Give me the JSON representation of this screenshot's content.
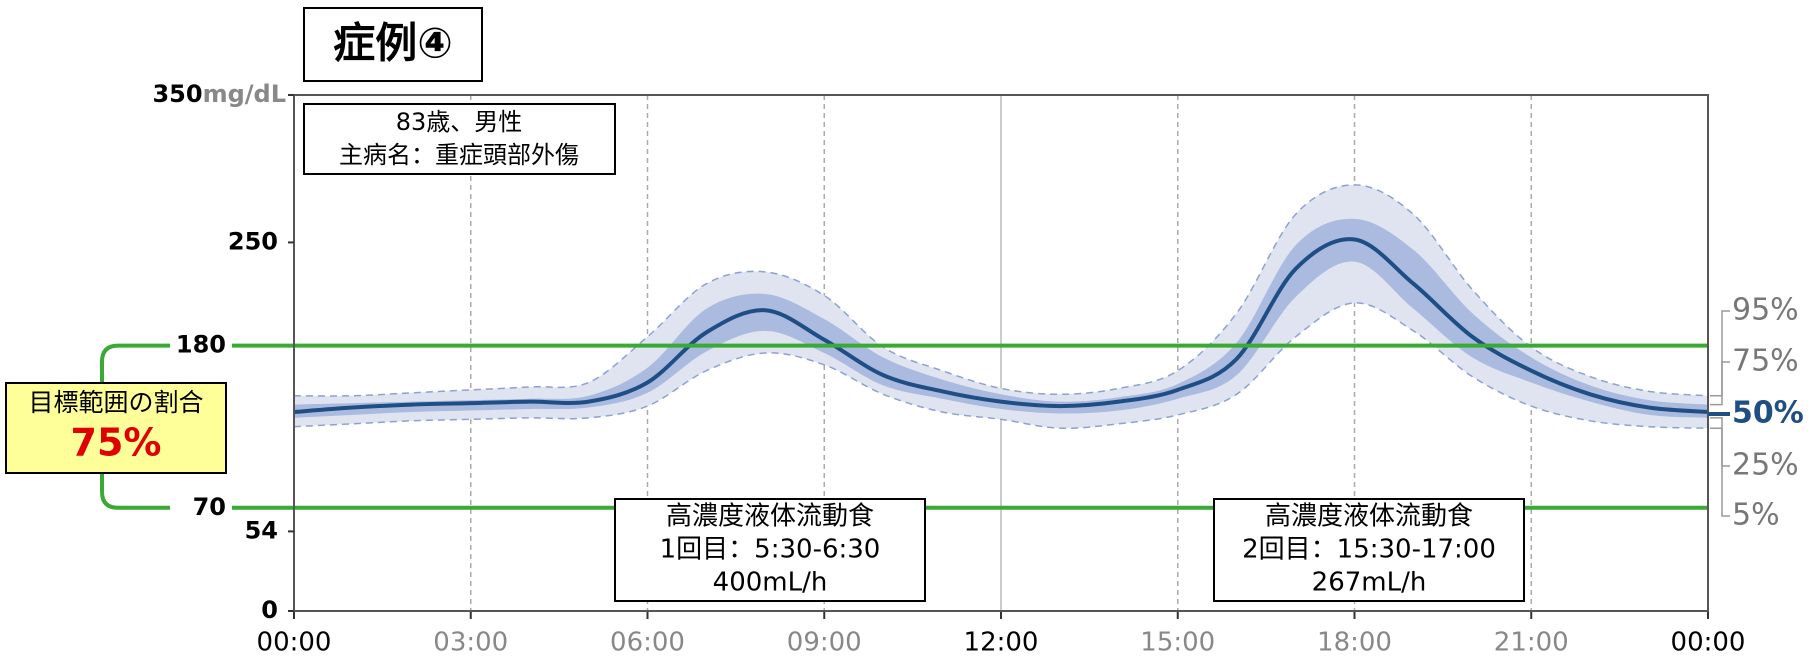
{
  "chart_data": {
    "type": "agp",
    "title": "症例④",
    "patient_info": [
      "83歳、男性",
      "主病名：重症頭部外傷"
    ],
    "x": [
      0,
      1,
      2,
      3,
      4,
      5,
      6,
      7,
      8,
      9,
      10,
      11,
      12,
      13,
      14,
      15,
      16,
      17,
      18,
      19,
      20,
      21,
      22,
      23,
      24
    ],
    "xlim": [
      0,
      24
    ],
    "xticks": [
      {
        "value": 0,
        "label": "00:00"
      },
      {
        "value": 3,
        "label": "03:00"
      },
      {
        "value": 6,
        "label": "06:00"
      },
      {
        "value": 9,
        "label": "09:00"
      },
      {
        "value": 12,
        "label": "12:00"
      },
      {
        "value": 15,
        "label": "15:00"
      },
      {
        "value": 18,
        "label": "18:00"
      },
      {
        "value": 21,
        "label": "21:00"
      },
      {
        "value": 24,
        "label": "00:00"
      }
    ],
    "ylim": [
      0,
      350
    ],
    "yticks": [
      0,
      54,
      250,
      350
    ],
    "y_unit": "mg/dL",
    "target_range": {
      "low": 70,
      "high": 180,
      "color": "#3aaa35"
    },
    "time_in_range": {
      "title": "目標範囲の割合",
      "value": 75,
      "label": "75%"
    },
    "outer_band_color": "#dfe4f0",
    "inner_band_color": "#aabbdf",
    "series": [
      {
        "name": "95%",
        "color": "#8da2cf",
        "values": [
          146,
          146,
          148,
          150,
          152,
          155,
          186,
          222,
          230,
          214,
          179,
          163,
          151,
          147,
          151,
          163,
          202,
          269,
          289,
          269,
          218,
          179,
          159,
          149,
          146
        ]
      },
      {
        "name": "75%",
        "color": "#aabbdf",
        "values": [
          140,
          141,
          142,
          143,
          144,
          146,
          165,
          205,
          215,
          198,
          172,
          157,
          147,
          142,
          145,
          154,
          182,
          248,
          266,
          245,
          202,
          172,
          153,
          143,
          140
        ]
      },
      {
        "name": "50%",
        "color": "#1f4e85",
        "values": [
          135,
          138,
          140,
          141,
          142,
          142,
          155,
          189,
          204,
          184,
          160,
          149,
          142,
          139,
          142,
          150,
          171,
          232,
          252,
          222,
          186,
          163,
          147,
          138,
          135
        ]
      },
      {
        "name": "25%",
        "color": "#aabbdf",
        "values": [
          131,
          133,
          135,
          136,
          137,
          138,
          148,
          176,
          190,
          175,
          153,
          144,
          137,
          134,
          136,
          144,
          160,
          213,
          237,
          205,
          172,
          155,
          142,
          133,
          131
        ]
      },
      {
        "name": "5%",
        "color": "#8da2cf",
        "values": [
          125,
          127,
          129,
          130,
          131,
          131,
          139,
          163,
          175,
          167,
          147,
          135,
          130,
          124,
          127,
          133,
          147,
          186,
          209,
          190,
          159,
          139,
          129,
          125,
          124
        ]
      }
    ],
    "annotations": [
      {
        "lines": [
          "高濃度液体流動食",
          "1回目：5:30-6:30",
          "400mL/h"
        ]
      },
      {
        "lines": [
          "高濃度液体流動食",
          "2回目：15:30-17:00",
          "267mL/h"
        ]
      }
    ]
  }
}
